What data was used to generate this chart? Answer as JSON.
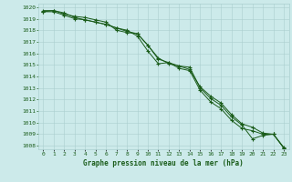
{
  "x": [
    0,
    1,
    2,
    3,
    4,
    5,
    6,
    7,
    8,
    9,
    10,
    11,
    12,
    13,
    14,
    15,
    16,
    17,
    18,
    19,
    20,
    21,
    22,
    23
  ],
  "line1": [
    1019.7,
    1019.7,
    1019.4,
    1019.2,
    1019.1,
    1018.9,
    1018.7,
    1018.0,
    1017.8,
    1017.7,
    1016.7,
    1015.6,
    1015.1,
    1014.9,
    1014.8,
    1013.0,
    1012.1,
    1011.5,
    1010.5,
    1009.8,
    1008.6,
    1008.9,
    1009.0,
    1007.8
  ],
  "line2": [
    1019.6,
    1019.6,
    1019.3,
    1019.0,
    1018.9,
    1018.7,
    1018.5,
    1018.2,
    1018.0,
    1017.5,
    1016.2,
    1015.1,
    1015.2,
    1014.7,
    1014.5,
    1012.8,
    1011.8,
    1011.2,
    1010.2,
    1009.5,
    1009.3,
    1009.0,
    1009.0,
    1007.8
  ],
  "line3": [
    1019.6,
    1019.7,
    1019.5,
    1019.1,
    1018.9,
    1018.7,
    1018.5,
    1018.2,
    1017.9,
    1017.7,
    1016.7,
    1015.5,
    1015.2,
    1014.9,
    1014.6,
    1013.1,
    1012.3,
    1011.7,
    1010.7,
    1009.9,
    1009.6,
    1009.1,
    1009.0,
    1007.85
  ],
  "line_color": "#1a5c1a",
  "marker_color": "#1a5c1a",
  "bg_color": "#cceaea",
  "grid_color": "#aacfcf",
  "text_color": "#1a5c1a",
  "ylim_min": 1008,
  "ylim_max": 1020,
  "yticks": [
    1008,
    1009,
    1010,
    1011,
    1012,
    1013,
    1014,
    1015,
    1016,
    1017,
    1018,
    1019,
    1020
  ],
  "xlabel": "Graphe pression niveau de la mer (hPa)"
}
